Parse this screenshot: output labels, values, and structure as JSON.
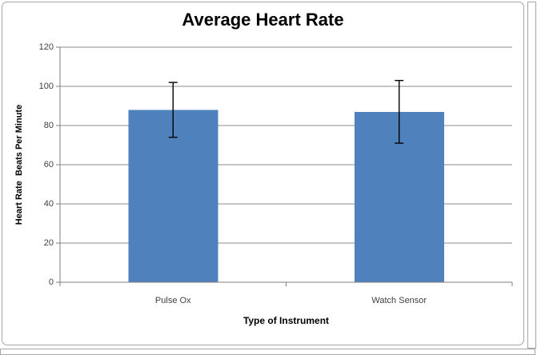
{
  "chart_data": {
    "type": "bar",
    "title": "Average Heart Rate",
    "xlabel": "Type of Instrument",
    "ylabel": "Heart Rate  Beats Per Minute",
    "categories": [
      "Pulse Ox",
      "Watch Sensor"
    ],
    "values": [
      88,
      87
    ],
    "error_low": [
      74,
      71
    ],
    "error_high": [
      102,
      103
    ],
    "ylim": [
      0,
      120
    ],
    "yticks": [
      0,
      20,
      40,
      60,
      80,
      100,
      120
    ],
    "grid": true,
    "legend": "none",
    "colors": {
      "bar": "#4F81BD",
      "gridline": "#8E8E8E",
      "axis": "#7F7F7F",
      "error_bar": "#000000",
      "title_text": "#000000",
      "tick_text": "#404040",
      "frame_border": "#A6A6A6"
    }
  }
}
